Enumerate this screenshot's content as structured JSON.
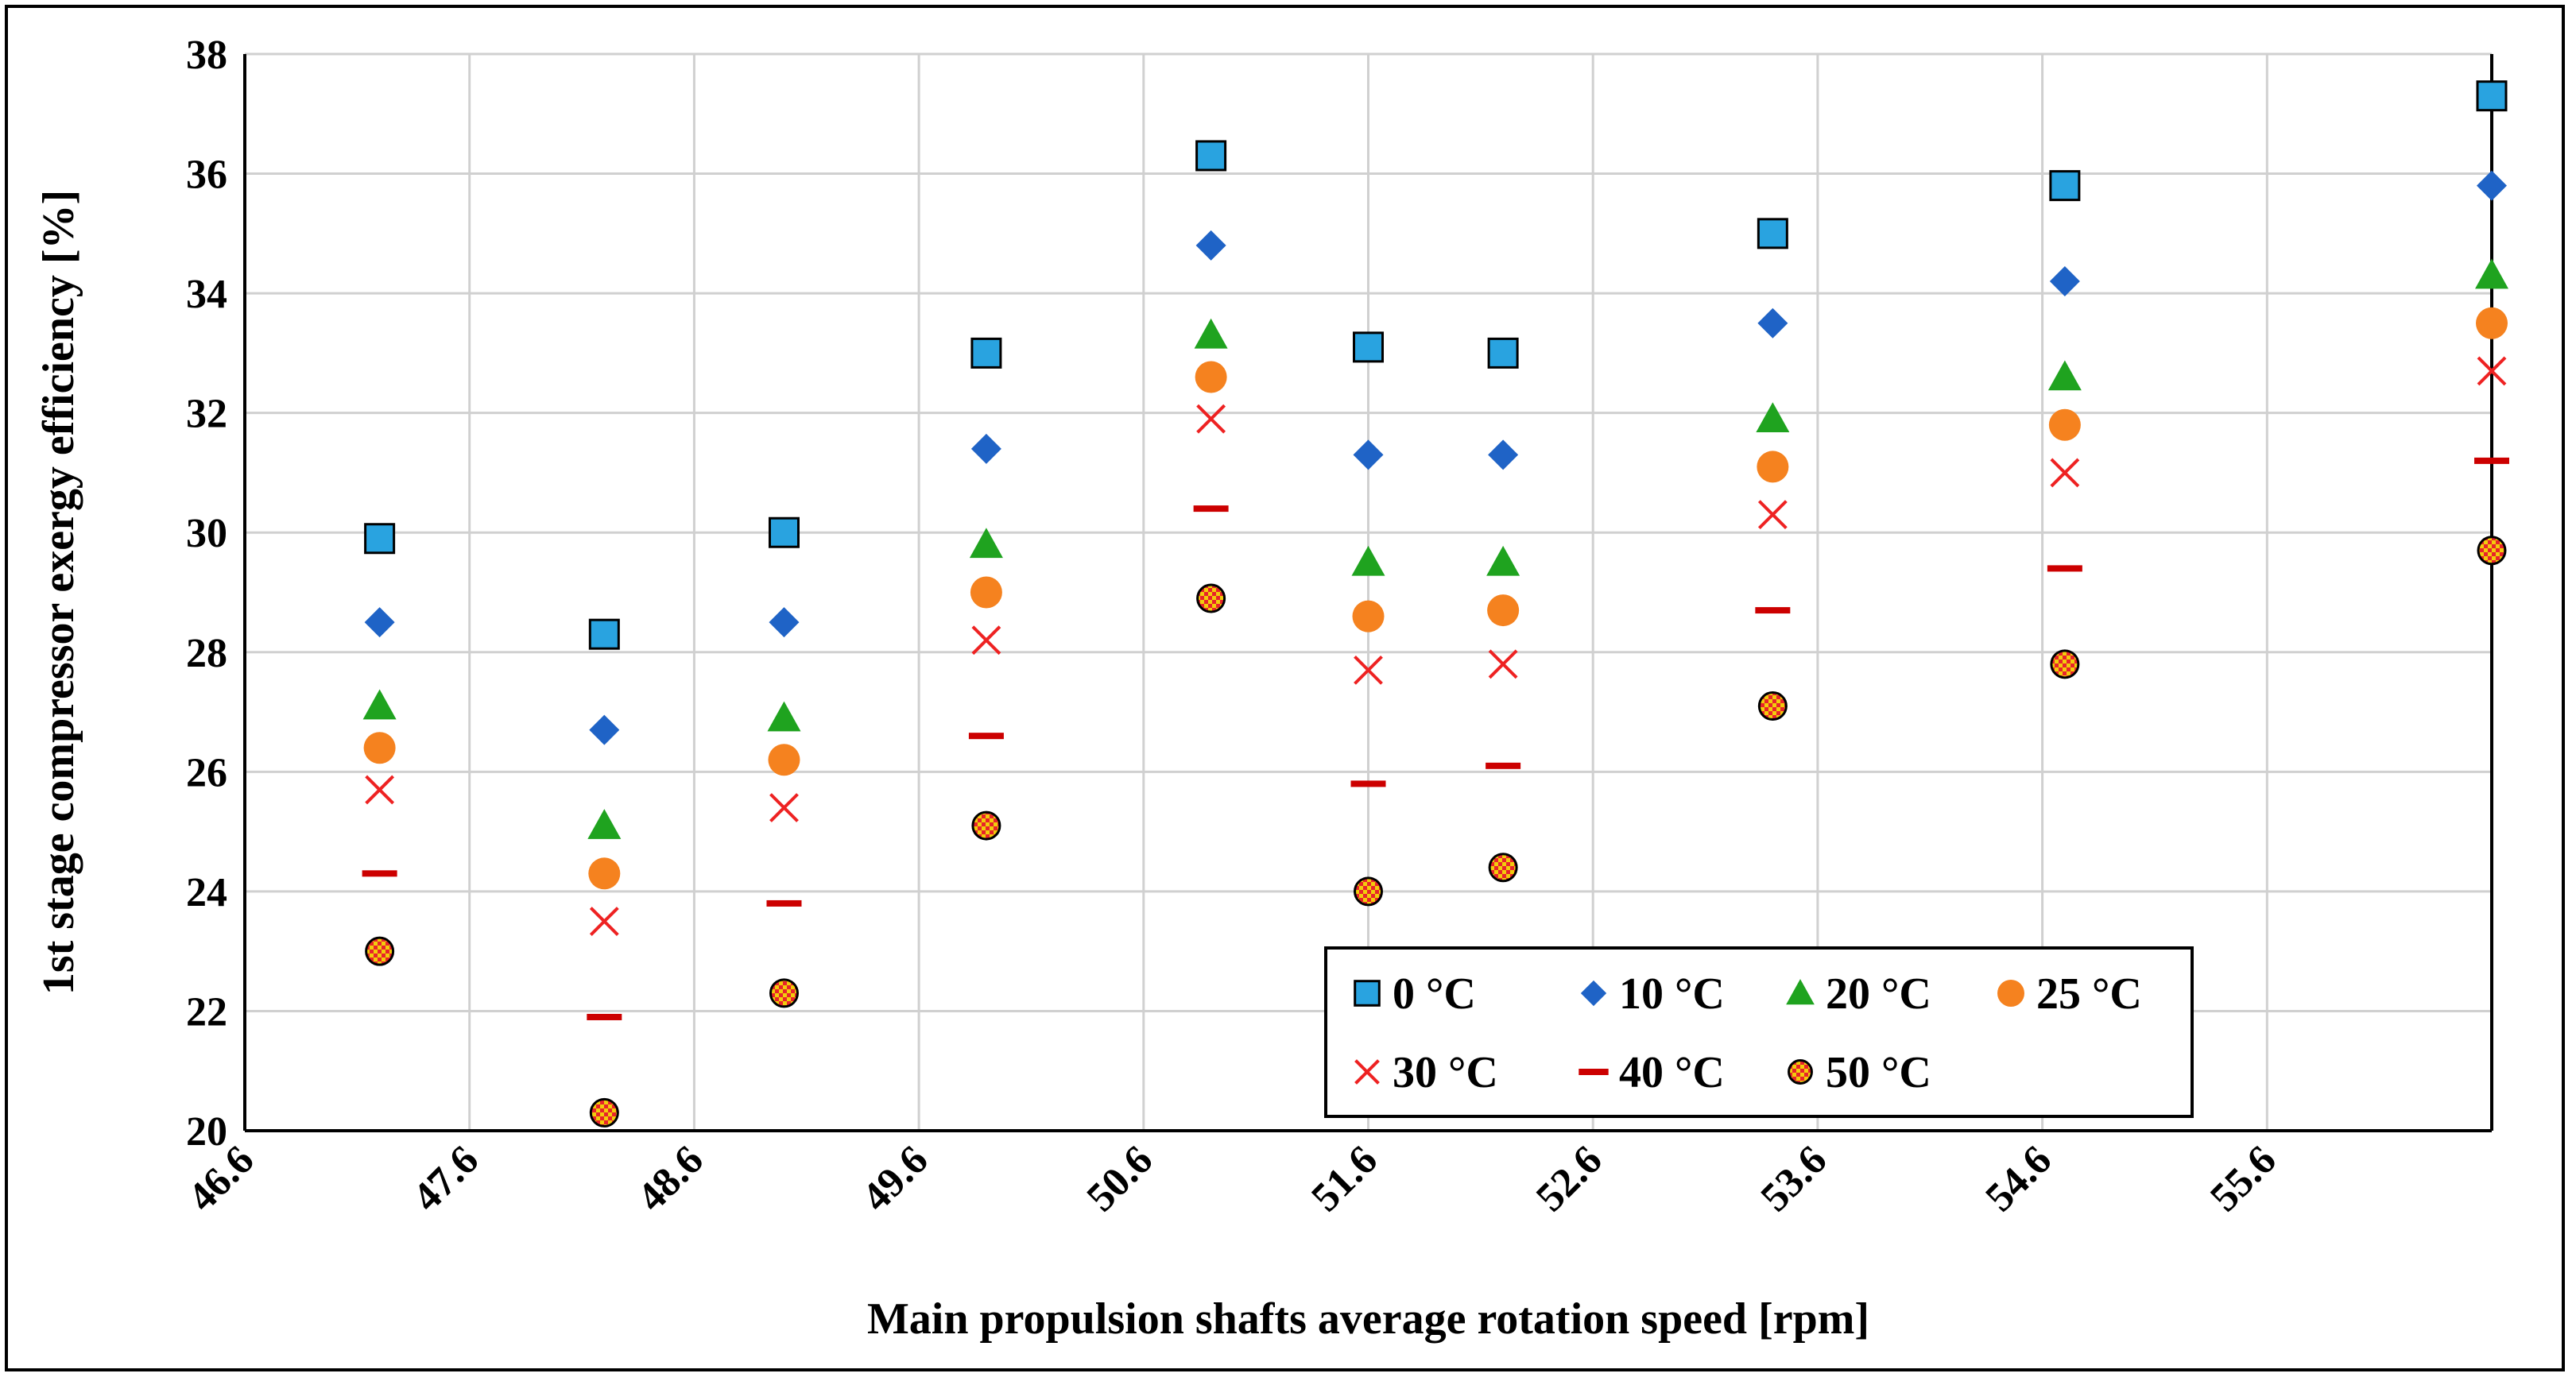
{
  "chart_data": {
    "type": "scatter",
    "title": "",
    "xlabel": "Main propulsion shafts average rotation speed [rpm]",
    "ylabel": "1st stage compressor exergy efficiency [%]",
    "xlim": [
      46.6,
      56.6
    ],
    "ylim": [
      20,
      38
    ],
    "x_ticks": [
      46.6,
      47.6,
      48.6,
      49.6,
      50.6,
      51.6,
      52.6,
      53.6,
      54.6,
      55.6
    ],
    "x_tick_labels": [
      "46.6",
      "47.6",
      "48.6",
      "49.6",
      "50.6",
      "51.6",
      "52.6",
      "53.6",
      "54.6",
      "55.6"
    ],
    "y_ticks": [
      20,
      22,
      24,
      26,
      28,
      30,
      32,
      34,
      36,
      38
    ],
    "y_tick_labels": [
      "20",
      "22",
      "24",
      "26",
      "28",
      "30",
      "32",
      "34",
      "36",
      "38"
    ],
    "grid": true,
    "legend_position": "bottom-right",
    "x": [
      47.2,
      48.2,
      49.0,
      49.9,
      50.9,
      51.6,
      52.2,
      53.4,
      54.7,
      56.6
    ],
    "series": [
      {
        "name": "0 °C",
        "marker": "square",
        "color": "#29a3e0",
        "values": [
          29.9,
          28.3,
          30.0,
          33.0,
          36.3,
          33.1,
          33.0,
          35.0,
          35.8,
          37.3
        ]
      },
      {
        "name": "10 °C",
        "marker": "diamond",
        "color": "#1f63c6",
        "values": [
          28.5,
          26.7,
          28.5,
          31.4,
          34.8,
          31.3,
          31.3,
          33.5,
          34.2,
          35.8
        ]
      },
      {
        "name": "20 °C",
        "marker": "triangle",
        "color": "#1fa31f",
        "values": [
          27.1,
          25.1,
          26.9,
          29.8,
          33.3,
          29.5,
          29.5,
          31.9,
          32.6,
          34.3
        ]
      },
      {
        "name": "25 °C",
        "marker": "circle",
        "color": "#f5821f",
        "values": [
          26.4,
          24.3,
          26.2,
          29.0,
          32.6,
          28.6,
          28.7,
          31.1,
          31.8,
          33.5
        ]
      },
      {
        "name": "30 °C",
        "marker": "x",
        "color": "#ee2222",
        "values": [
          25.7,
          23.5,
          25.4,
          28.2,
          31.9,
          27.7,
          27.8,
          30.3,
          31.0,
          32.7
        ]
      },
      {
        "name": "40 °C",
        "marker": "dash",
        "color": "#cc0000",
        "values": [
          24.3,
          21.9,
          23.8,
          26.6,
          30.4,
          25.8,
          26.1,
          28.7,
          29.4,
          31.2
        ]
      },
      {
        "name": "50 °C",
        "marker": "checker-circle",
        "color": "#f2cc0c",
        "accent": "#e8242a",
        "values": [
          23.0,
          20.3,
          22.3,
          25.1,
          28.9,
          24.0,
          24.4,
          27.1,
          27.8,
          29.7
        ]
      }
    ]
  }
}
